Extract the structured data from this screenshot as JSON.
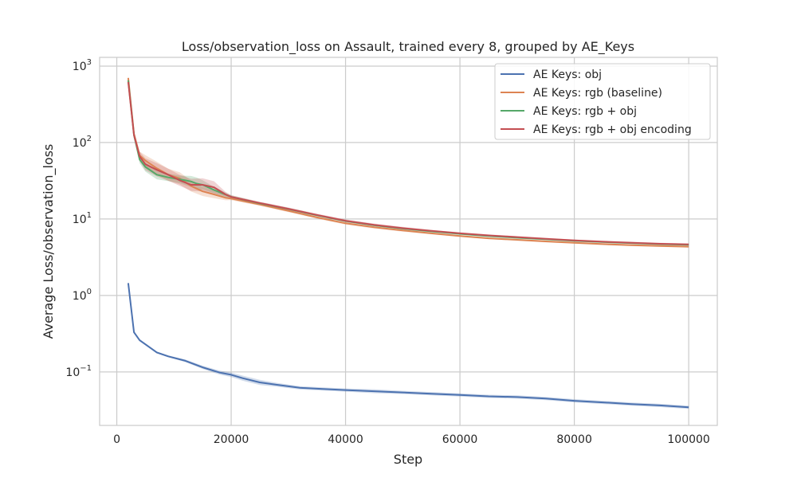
{
  "chart_data": {
    "type": "line",
    "title": "Loss/observation_loss on Assault, trained every 8, grouped by AE_Keys",
    "xlabel": "Step",
    "ylabel": "Average Loss/observation_loss",
    "yscale": "log",
    "xlim": [
      -3000,
      105000
    ],
    "ylim": [
      0.02,
      1300
    ],
    "xticks": [
      0,
      20000,
      40000,
      60000,
      80000,
      100000
    ],
    "xtick_labels": [
      "0",
      "20000",
      "40000",
      "60000",
      "80000",
      "100000"
    ],
    "yticks": [
      0.1,
      1,
      10,
      100,
      1000
    ],
    "ytick_labels": [
      {
        "base": "10",
        "exp": "−1"
      },
      {
        "base": "10",
        "exp": "0"
      },
      {
        "base": "10",
        "exp": "1"
      },
      {
        "base": "10",
        "exp": "2"
      },
      {
        "base": "10",
        "exp": "3"
      }
    ],
    "grid": true,
    "legend_position": "top-right",
    "series": [
      {
        "name": "AE Keys: obj",
        "color": "#4c72b0",
        "x": [
          2000,
          3000,
          4000,
          5000,
          7000,
          9000,
          12000,
          15000,
          18000,
          20000,
          22000,
          25000,
          28000,
          32000,
          36000,
          40000,
          45000,
          50000,
          55000,
          60000,
          65000,
          70000,
          75000,
          80000,
          85000,
          90000,
          95000,
          100000
        ],
        "y": [
          1.45,
          0.33,
          0.26,
          0.23,
          0.18,
          0.16,
          0.14,
          0.115,
          0.098,
          0.092,
          0.083,
          0.073,
          0.068,
          0.062,
          0.06,
          0.058,
          0.056,
          0.054,
          0.052,
          0.05,
          0.048,
          0.047,
          0.045,
          0.042,
          0.04,
          0.038,
          0.0365,
          0.0345
        ],
        "band": [
          0.05,
          0.03,
          0.03,
          0.03,
          0.03,
          0.03,
          0.04,
          0.05,
          0.06,
          0.07,
          0.08,
          0.08,
          0.06,
          0.05,
          0.05,
          0.05,
          0.06,
          0.05,
          0.05,
          0.05,
          0.05,
          0.05,
          0.05,
          0.05,
          0.05,
          0.05,
          0.05,
          0.05
        ]
      },
      {
        "name": "AE Keys: rgb (baseline)",
        "color": "#dd8452",
        "x": [
          2000,
          3000,
          4000,
          5000,
          7000,
          9000,
          11000,
          13000,
          15000,
          17000,
          19000,
          20000,
          25000,
          30000,
          35000,
          40000,
          45000,
          50000,
          55000,
          60000,
          65000,
          70000,
          75000,
          80000,
          85000,
          90000,
          95000,
          100000
        ],
        "y": [
          700,
          130,
          68,
          58,
          46,
          38,
          34,
          27,
          23,
          21,
          19,
          18.5,
          15.5,
          12.8,
          10.5,
          8.8,
          7.8,
          7.1,
          6.5,
          6.0,
          5.6,
          5.35,
          5.1,
          4.9,
          4.7,
          4.55,
          4.45,
          4.35
        ],
        "band": [
          0.08,
          0.1,
          0.12,
          0.18,
          0.22,
          0.2,
          0.2,
          0.18,
          0.15,
          0.12,
          0.08,
          0.05,
          0.04,
          0.04,
          0.04,
          0.04,
          0.04,
          0.04,
          0.03,
          0.03,
          0.03,
          0.03,
          0.03,
          0.03,
          0.03,
          0.03,
          0.03,
          0.03
        ]
      },
      {
        "name": "AE Keys: rgb + obj",
        "color": "#55a868",
        "x": [
          2000,
          3000,
          4000,
          5000,
          7000,
          9000,
          11000,
          12000,
          13000,
          14000,
          15000,
          17000,
          20000,
          25000,
          30000,
          35000,
          40000,
          45000,
          50000,
          55000,
          60000,
          65000,
          70000,
          75000,
          80000,
          85000,
          90000,
          95000,
          100000
        ],
        "y": [
          650,
          125,
          60,
          48,
          38,
          35,
          33,
          32,
          31,
          29,
          28,
          24,
          19.5,
          16,
          13.5,
          11.2,
          9.4,
          8.3,
          7.5,
          6.9,
          6.4,
          6.0,
          5.7,
          5.45,
          5.2,
          5.0,
          4.85,
          4.7,
          4.6
        ],
        "band": [
          0.05,
          0.1,
          0.12,
          0.15,
          0.15,
          0.12,
          0.12,
          0.15,
          0.18,
          0.2,
          0.15,
          0.1,
          0.05,
          0.04,
          0.04,
          0.03,
          0.03,
          0.03,
          0.03,
          0.03,
          0.03,
          0.03,
          0.03,
          0.03,
          0.03,
          0.03,
          0.03,
          0.03,
          0.03
        ]
      },
      {
        "name": "AE Keys: rgb + obj encoding",
        "color": "#c44e52",
        "x": [
          2000,
          3000,
          4000,
          5000,
          7000,
          9000,
          11000,
          13000,
          15000,
          17000,
          19000,
          20000,
          25000,
          30000,
          35000,
          40000,
          45000,
          50000,
          55000,
          60000,
          65000,
          70000,
          75000,
          80000,
          85000,
          90000,
          95000,
          100000
        ],
        "y": [
          620,
          125,
          66,
          52,
          44,
          38,
          32,
          28,
          28,
          26,
          21,
          19.5,
          16.2,
          13.6,
          11.3,
          9.5,
          8.4,
          7.6,
          7.0,
          6.5,
          6.1,
          5.8,
          5.5,
          5.25,
          5.05,
          4.9,
          4.75,
          4.65
        ],
        "band": [
          0.05,
          0.1,
          0.15,
          0.2,
          0.22,
          0.2,
          0.18,
          0.2,
          0.22,
          0.2,
          0.08,
          0.05,
          0.04,
          0.04,
          0.04,
          0.04,
          0.04,
          0.04,
          0.03,
          0.03,
          0.03,
          0.03,
          0.03,
          0.03,
          0.03,
          0.03,
          0.03,
          0.03
        ]
      }
    ]
  }
}
